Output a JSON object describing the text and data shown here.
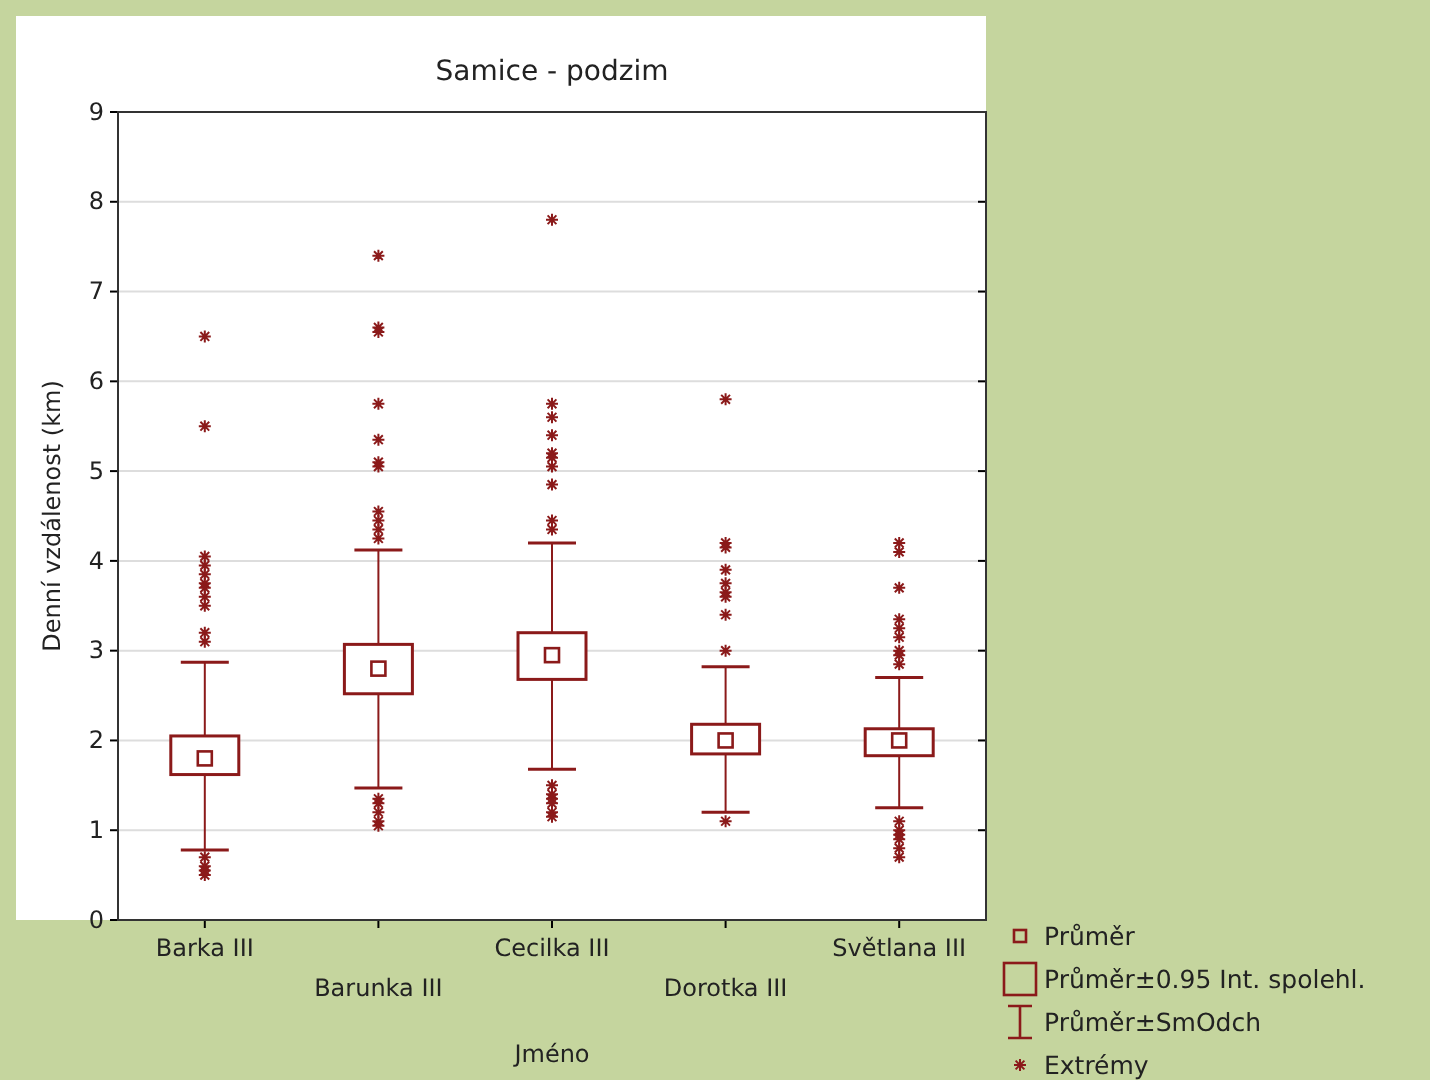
{
  "chart_data": {
    "type": "box",
    "title": "Samice - podzim",
    "xlabel": "Jméno",
    "ylabel": "Denní vzdálenost (km)",
    "categories": [
      "Barka III",
      "Barunka III",
      "Cecilka III",
      "Dorotka III",
      "Světlana III"
    ],
    "color": "#8b1a1a",
    "boxes": [
      {
        "low": 0.78,
        "q1": 1.62,
        "median": 1.8,
        "q3": 2.05,
        "high": 2.87,
        "outliers": [
          6.5,
          5.5,
          4.05,
          3.95,
          3.85,
          3.75,
          3.7,
          3.6,
          3.5,
          3.2,
          3.1,
          0.7,
          0.6,
          0.55,
          0.5
        ]
      },
      {
        "low": 1.47,
        "q1": 2.52,
        "median": 2.8,
        "q3": 3.07,
        "high": 4.12,
        "outliers": [
          7.4,
          6.6,
          6.55,
          5.75,
          5.35,
          5.1,
          5.05,
          4.55,
          4.45,
          4.35,
          4.25,
          1.35,
          1.3,
          1.2,
          1.1,
          1.05
        ]
      },
      {
        "low": 1.68,
        "q1": 2.68,
        "median": 2.95,
        "q3": 3.2,
        "high": 4.2,
        "outliers": [
          7.8,
          5.75,
          5.6,
          5.4,
          5.2,
          5.15,
          5.05,
          4.85,
          4.45,
          4.35,
          1.5,
          1.4,
          1.35,
          1.3,
          1.2,
          1.15
        ]
      },
      {
        "low": 1.2,
        "q1": 1.85,
        "median": 2.0,
        "q3": 2.18,
        "high": 2.82,
        "outliers": [
          5.8,
          4.2,
          4.15,
          3.9,
          3.75,
          3.65,
          3.6,
          3.4,
          3.0,
          1.1
        ]
      },
      {
        "low": 1.25,
        "q1": 1.83,
        "median": 2.0,
        "q3": 2.13,
        "high": 2.7,
        "outliers": [
          4.2,
          4.1,
          3.7,
          3.35,
          3.25,
          3.15,
          3.0,
          2.95,
          2.85,
          1.1,
          1.0,
          0.95,
          0.9,
          0.8,
          0.7
        ]
      }
    ],
    "ylim": [
      0,
      9
    ],
    "yticks": [
      0,
      1,
      2,
      3,
      4,
      5,
      6,
      7,
      8,
      9
    ],
    "grid": "y",
    "annotations": [
      "Průměr",
      "Průměr±0.95 Int. spolehl.",
      "Průměr±SmOdch",
      "Extrémy"
    ]
  }
}
